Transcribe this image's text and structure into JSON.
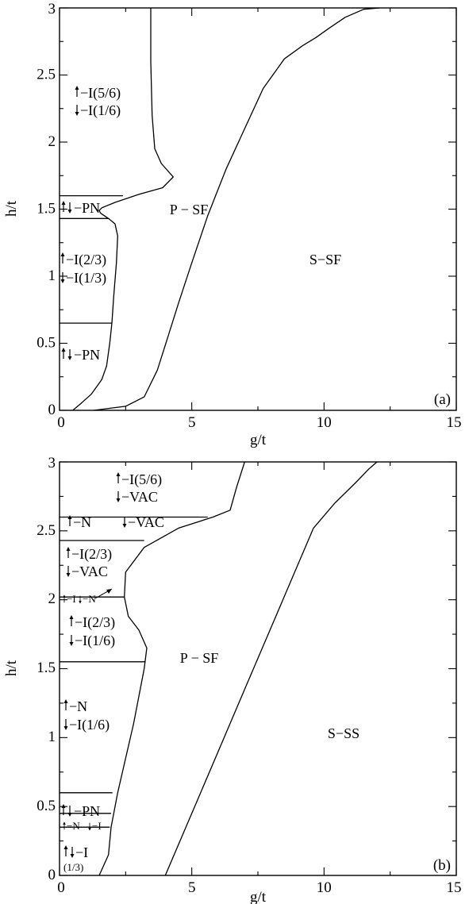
{
  "chart_data": [
    {
      "type": "line",
      "panel_tag": "(a)",
      "xlabel": "g/t",
      "ylabel": "h/t",
      "xlim": [
        0,
        15
      ],
      "ylim": [
        0,
        3
      ],
      "xticks": [
        "0",
        "5",
        "10",
        "15"
      ],
      "yticks": [
        "0",
        "0.5",
        "1",
        "1.5",
        "2",
        "2.5",
        "3"
      ],
      "grid": false,
      "series": [
        {
          "points": [
            [
              3.45,
              3.0
            ],
            [
              3.45,
              2.6
            ],
            [
              3.5,
              2.2
            ],
            [
              3.6,
              1.95
            ],
            [
              3.85,
              1.84
            ],
            [
              4.3,
              1.74
            ],
            [
              3.9,
              1.66
            ],
            [
              3.0,
              1.61
            ],
            [
              2.1,
              1.55
            ],
            [
              1.6,
              1.51
            ],
            [
              1.5,
              1.49
            ],
            [
              1.55,
              1.47
            ],
            [
              1.85,
              1.43
            ],
            [
              2.1,
              1.39
            ],
            [
              2.2,
              1.3
            ],
            [
              2.15,
              1.1
            ],
            [
              2.05,
              0.85
            ],
            [
              1.98,
              0.65
            ],
            [
              1.9,
              0.5
            ],
            [
              1.78,
              0.33
            ],
            [
              1.6,
              0.23
            ],
            [
              1.2,
              0.12
            ],
            [
              0.8,
              0.05
            ],
            [
              0.5,
              0.0
            ]
          ]
        },
        {
          "points": [
            [
              1.3,
              0.0
            ],
            [
              2.5,
              0.03
            ],
            [
              3.2,
              0.1
            ],
            [
              3.7,
              0.3
            ],
            [
              4.1,
              0.55
            ],
            [
              4.5,
              0.8
            ],
            [
              5.0,
              1.1
            ],
            [
              5.6,
              1.45
            ],
            [
              6.3,
              1.8
            ],
            [
              7.0,
              2.1
            ],
            [
              7.7,
              2.4
            ],
            [
              8.5,
              2.62
            ],
            [
              9.2,
              2.72
            ],
            [
              9.7,
              2.78
            ],
            [
              10.2,
              2.85
            ],
            [
              10.8,
              2.93
            ],
            [
              11.5,
              2.99
            ],
            [
              12.1,
              3.0
            ]
          ]
        },
        {
          "points": [
            [
              0,
              1.6
            ],
            [
              2.4,
              1.6
            ]
          ]
        },
        {
          "points": [
            [
              0,
              1.43
            ],
            [
              1.85,
              1.43
            ]
          ]
        },
        {
          "points": [
            [
              0,
              0.65
            ],
            [
              1.98,
              0.65
            ]
          ]
        }
      ],
      "annotations": [
        "P − SF",
        "S−SF",
        "−I(5/6)",
        "−I(1/6)",
        "−PN",
        "−I(2/3)",
        "−I(1/3)",
        "−PN"
      ]
    },
    {
      "type": "line",
      "panel_tag": "(b)",
      "xlabel": "g/t",
      "ylabel": "h/t",
      "xlim": [
        0,
        15
      ],
      "ylim": [
        0,
        3
      ],
      "xticks": [
        "0",
        "5",
        "10",
        "15"
      ],
      "yticks": [
        "0",
        "0.5",
        "1",
        "1.5",
        "2",
        "2.5",
        "3"
      ],
      "grid": false,
      "series": [
        {
          "points": [
            [
              7.0,
              3.0
            ],
            [
              6.7,
              2.82
            ],
            [
              6.45,
              2.65
            ],
            [
              5.8,
              2.6
            ],
            [
              4.5,
              2.52
            ],
            [
              3.2,
              2.38
            ],
            [
              2.5,
              2.2
            ],
            [
              2.45,
              2.02
            ],
            [
              2.6,
              1.88
            ],
            [
              3.0,
              1.78
            ],
            [
              3.3,
              1.65
            ],
            [
              3.2,
              1.5
            ],
            [
              3.05,
              1.35
            ],
            [
              2.8,
              1.1
            ],
            [
              2.5,
              0.85
            ],
            [
              2.2,
              0.6
            ],
            [
              1.95,
              0.35
            ],
            [
              1.85,
              0.15
            ],
            [
              1.5,
              0.0
            ]
          ]
        },
        {
          "points": [
            [
              4.0,
              0.0
            ],
            [
              5.0,
              0.45
            ],
            [
              6.0,
              0.9
            ],
            [
              7.0,
              1.35
            ],
            [
              8.0,
              1.8
            ],
            [
              9.0,
              2.25
            ],
            [
              9.6,
              2.52
            ],
            [
              10.4,
              2.7
            ],
            [
              11.2,
              2.85
            ],
            [
              11.7,
              2.95
            ],
            [
              12.0,
              3.0
            ]
          ]
        },
        {
          "points": [
            [
              0,
              2.6
            ],
            [
              5.6,
              2.6
            ]
          ]
        },
        {
          "points": [
            [
              0,
              2.43
            ],
            [
              3.2,
              2.43
            ]
          ]
        },
        {
          "points": [
            [
              0,
              2.02
            ],
            [
              2.45,
              2.02
            ]
          ]
        },
        {
          "points": [
            [
              0,
              1.55
            ],
            [
              3.25,
              1.55
            ]
          ]
        },
        {
          "points": [
            [
              0,
              0.6
            ],
            [
              2.0,
              0.6
            ]
          ]
        },
        {
          "points": [
            [
              0,
              0.45
            ],
            [
              1.95,
              0.45
            ]
          ]
        },
        {
          "points": [
            [
              0,
              0.35
            ],
            [
              1.9,
              0.35
            ]
          ]
        }
      ],
      "annotations": [
        "P − SF",
        "S−SS",
        "−I(5/6)",
        "−VAC",
        "−N",
        "−VAC",
        "−I(2/3)",
        "−VAC",
        "−I",
        "−N",
        "−I(2/3)",
        "−I(1/6)",
        "−N",
        "−I(1/6)",
        "−PN",
        "−N",
        "−I",
        "−I",
        "(1/3)"
      ]
    }
  ],
  "labels": {
    "a": {
      "psf": "P − SF",
      "ssf": "S−SF",
      "i56": "−I(5/6)",
      "i16": "−I(1/6)",
      "pn_upper": "−PN",
      "i23": "−I(2/3)",
      "i13": "−I(1/3)",
      "pn_lower": "−PN"
    },
    "b": {
      "psf": "P − SF",
      "sss": "S−SS",
      "i56": "−I(5/6)",
      "vac1": "−VAC",
      "n1": "−N",
      "vac2": "−VAC",
      "i23a": "−I(2/3)",
      "vac3": "−VAC",
      "small_i": "−I",
      "small_n": "−N",
      "i23b": "−I(2/3)",
      "i16a": "−I(1/6)",
      "n2": "−N",
      "i16b": "−I(1/6)",
      "pn": "−PN",
      "small_n2": "−N",
      "small_i2": "−I",
      "bottom_i": "−I",
      "bottom_frac": "(1/3)"
    }
  }
}
